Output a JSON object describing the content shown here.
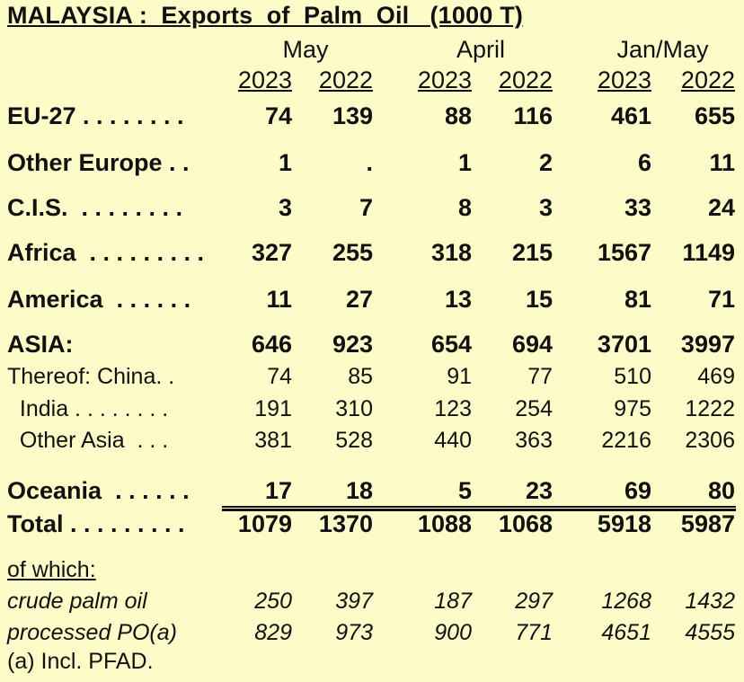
{
  "title": "MALAYSIA :  Exports  of  Palm  Oil   (1000 T)",
  "periods": [
    "May",
    "April",
    "Jan/May"
  ],
  "years": [
    "2023",
    "2022",
    "2023",
    "2022",
    "2023",
    "2022"
  ],
  "rows": [
    {
      "label": "EU-27",
      "dots": " . . . . . . . .",
      "style": "bold",
      "values": [
        "74",
        "139",
        "88",
        "116",
        "461",
        "655"
      ]
    },
    {
      "label": "Other Europe",
      "dots": " . .",
      "style": "bold",
      "values": [
        "1",
        ".",
        "1",
        "2",
        "6",
        "11"
      ]
    },
    {
      "label": "C.I.S.",
      "dots": "  . . . . . . . .",
      "style": "bold",
      "values": [
        "3",
        "7",
        "8",
        "3",
        "33",
        "24"
      ]
    },
    {
      "label": "Africa",
      "dots": "  . . . . . . . . .",
      "style": "bold",
      "values": [
        "327",
        "255",
        "318",
        "215",
        "1567",
        "1149"
      ]
    },
    {
      "label": "America",
      "dots": "  . . . . . .",
      "style": "bold",
      "values": [
        "11",
        "27",
        "13",
        "15",
        "81",
        "71"
      ]
    },
    {
      "label": "ASIA:",
      "dots": "",
      "style": "bold",
      "values": [
        "646",
        "923",
        "654",
        "694",
        "3701",
        "3997"
      ]
    },
    {
      "label": "Thereof: China",
      "dots": ". .",
      "style": "reg",
      "values": [
        "74",
        "85",
        "91",
        "77",
        "510",
        "469"
      ]
    },
    {
      "label": "  India",
      "dots": " . . . . . . . .",
      "style": "reg",
      "values": [
        "191",
        "310",
        "123",
        "254",
        "975",
        "1222"
      ]
    },
    {
      "label": "  Other Asia",
      "dots": "  . . .",
      "style": "reg",
      "values": [
        "381",
        "528",
        "440",
        "363",
        "2216",
        "2306"
      ]
    },
    {
      "label": "Oceania",
      "dots": "  . . . . . .",
      "style": "bold",
      "values": [
        "17",
        "18",
        "5",
        "23",
        "69",
        "80"
      ]
    },
    {
      "label": "Total",
      "dots": " . . . . . . . . .",
      "style": "bold",
      "values": [
        "1079",
        "1370",
        "1088",
        "1068",
        "5918",
        "5987"
      ]
    }
  ],
  "of_which_label": "of which:",
  "sub_rows": [
    {
      "label": "crude palm oil",
      "values": [
        "250",
        "397",
        "187",
        "297",
        "1268",
        "1432"
      ]
    },
    {
      "label": "processed PO(a)",
      "values": [
        "829",
        "973",
        "900",
        "771",
        "4651",
        "4555"
      ]
    }
  ],
  "footnote": "(a) Incl. PFAD."
}
